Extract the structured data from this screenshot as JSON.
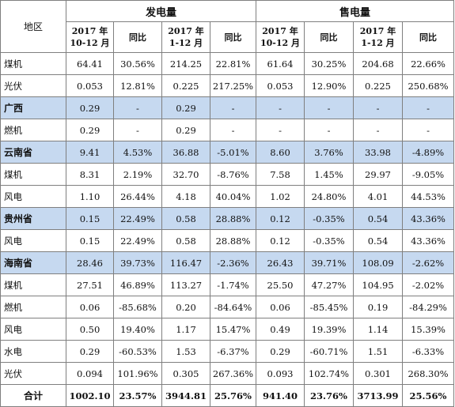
{
  "table": {
    "region_header": "地区",
    "groups": [
      "发电量",
      "售电量"
    ],
    "columns": [
      "2017 年\n10-12 月",
      "同比",
      "2017 年\n1-12 月",
      "同比",
      "2017 年\n10-12 月",
      "同比",
      "2017 年\n1-12 月",
      "同比"
    ],
    "rows": [
      {
        "name": "煤机",
        "highlight": false,
        "cells": [
          "64.41",
          "30.56%",
          "214.25",
          "22.81%",
          "61.64",
          "30.25%",
          "204.68",
          "22.66%"
        ]
      },
      {
        "name": "光伏",
        "highlight": false,
        "cells": [
          "0.053",
          "12.81%",
          "0.225",
          "217.25%",
          "0.053",
          "12.90%",
          "0.225",
          "250.68%"
        ]
      },
      {
        "name": "广西",
        "highlight": true,
        "cells": [
          "0.29",
          "-",
          "0.29",
          "-",
          "-",
          "-",
          "-",
          "-"
        ]
      },
      {
        "name": "燃机",
        "highlight": false,
        "cells": [
          "0.29",
          "-",
          "0.29",
          "-",
          "-",
          "-",
          "-",
          "-"
        ]
      },
      {
        "name": "云南省",
        "highlight": true,
        "cells": [
          "9.41",
          "4.53%",
          "36.88",
          "-5.01%",
          "8.60",
          "3.76%",
          "33.98",
          "-4.89%"
        ]
      },
      {
        "name": "煤机",
        "highlight": false,
        "cells": [
          "8.31",
          "2.19%",
          "32.70",
          "-8.76%",
          "7.58",
          "1.45%",
          "29.97",
          "-9.05%"
        ]
      },
      {
        "name": "风电",
        "highlight": false,
        "cells": [
          "1.10",
          "26.44%",
          "4.18",
          "40.04%",
          "1.02",
          "24.80%",
          "4.01",
          "44.53%"
        ]
      },
      {
        "name": "贵州省",
        "highlight": true,
        "cells": [
          "0.15",
          "22.49%",
          "0.58",
          "28.88%",
          "0.12",
          "-0.35%",
          "0.54",
          "43.36%"
        ]
      },
      {
        "name": "风电",
        "highlight": false,
        "cells": [
          "0.15",
          "22.49%",
          "0.58",
          "28.88%",
          "0.12",
          "-0.35%",
          "0.54",
          "43.36%"
        ]
      },
      {
        "name": "海南省",
        "highlight": true,
        "cells": [
          "28.46",
          "39.73%",
          "116.47",
          "-2.36%",
          "26.43",
          "39.71%",
          "108.09",
          "-2.62%"
        ]
      },
      {
        "name": "煤机",
        "highlight": false,
        "cells": [
          "27.51",
          "46.89%",
          "113.27",
          "-1.74%",
          "25.50",
          "47.27%",
          "104.95",
          "-2.02%"
        ]
      },
      {
        "name": "燃机",
        "highlight": false,
        "cells": [
          "0.06",
          "-85.68%",
          "0.20",
          "-84.64%",
          "0.06",
          "-85.45%",
          "0.19",
          "-84.29%"
        ]
      },
      {
        "name": "风电",
        "highlight": false,
        "cells": [
          "0.50",
          "19.40%",
          "1.17",
          "15.47%",
          "0.49",
          "19.39%",
          "1.14",
          "15.39%"
        ]
      },
      {
        "name": "水电",
        "highlight": false,
        "cells": [
          "0.29",
          "-60.53%",
          "1.53",
          "-6.37%",
          "0.29",
          "-60.71%",
          "1.51",
          "-6.33%"
        ]
      },
      {
        "name": "光伏",
        "highlight": false,
        "cells": [
          "0.094",
          "101.96%",
          "0.305",
          "267.36%",
          "0.093",
          "102.74%",
          "0.301",
          "268.30%"
        ]
      }
    ],
    "total": {
      "name": "合计",
      "cells": [
        "1002.10",
        "23.57%",
        "3944.81",
        "25.76%",
        "941.40",
        "23.76%",
        "3713.99",
        "25.56%"
      ]
    },
    "colors": {
      "highlight_row": "#c6d9f0",
      "border": "#7f7f7f"
    }
  }
}
